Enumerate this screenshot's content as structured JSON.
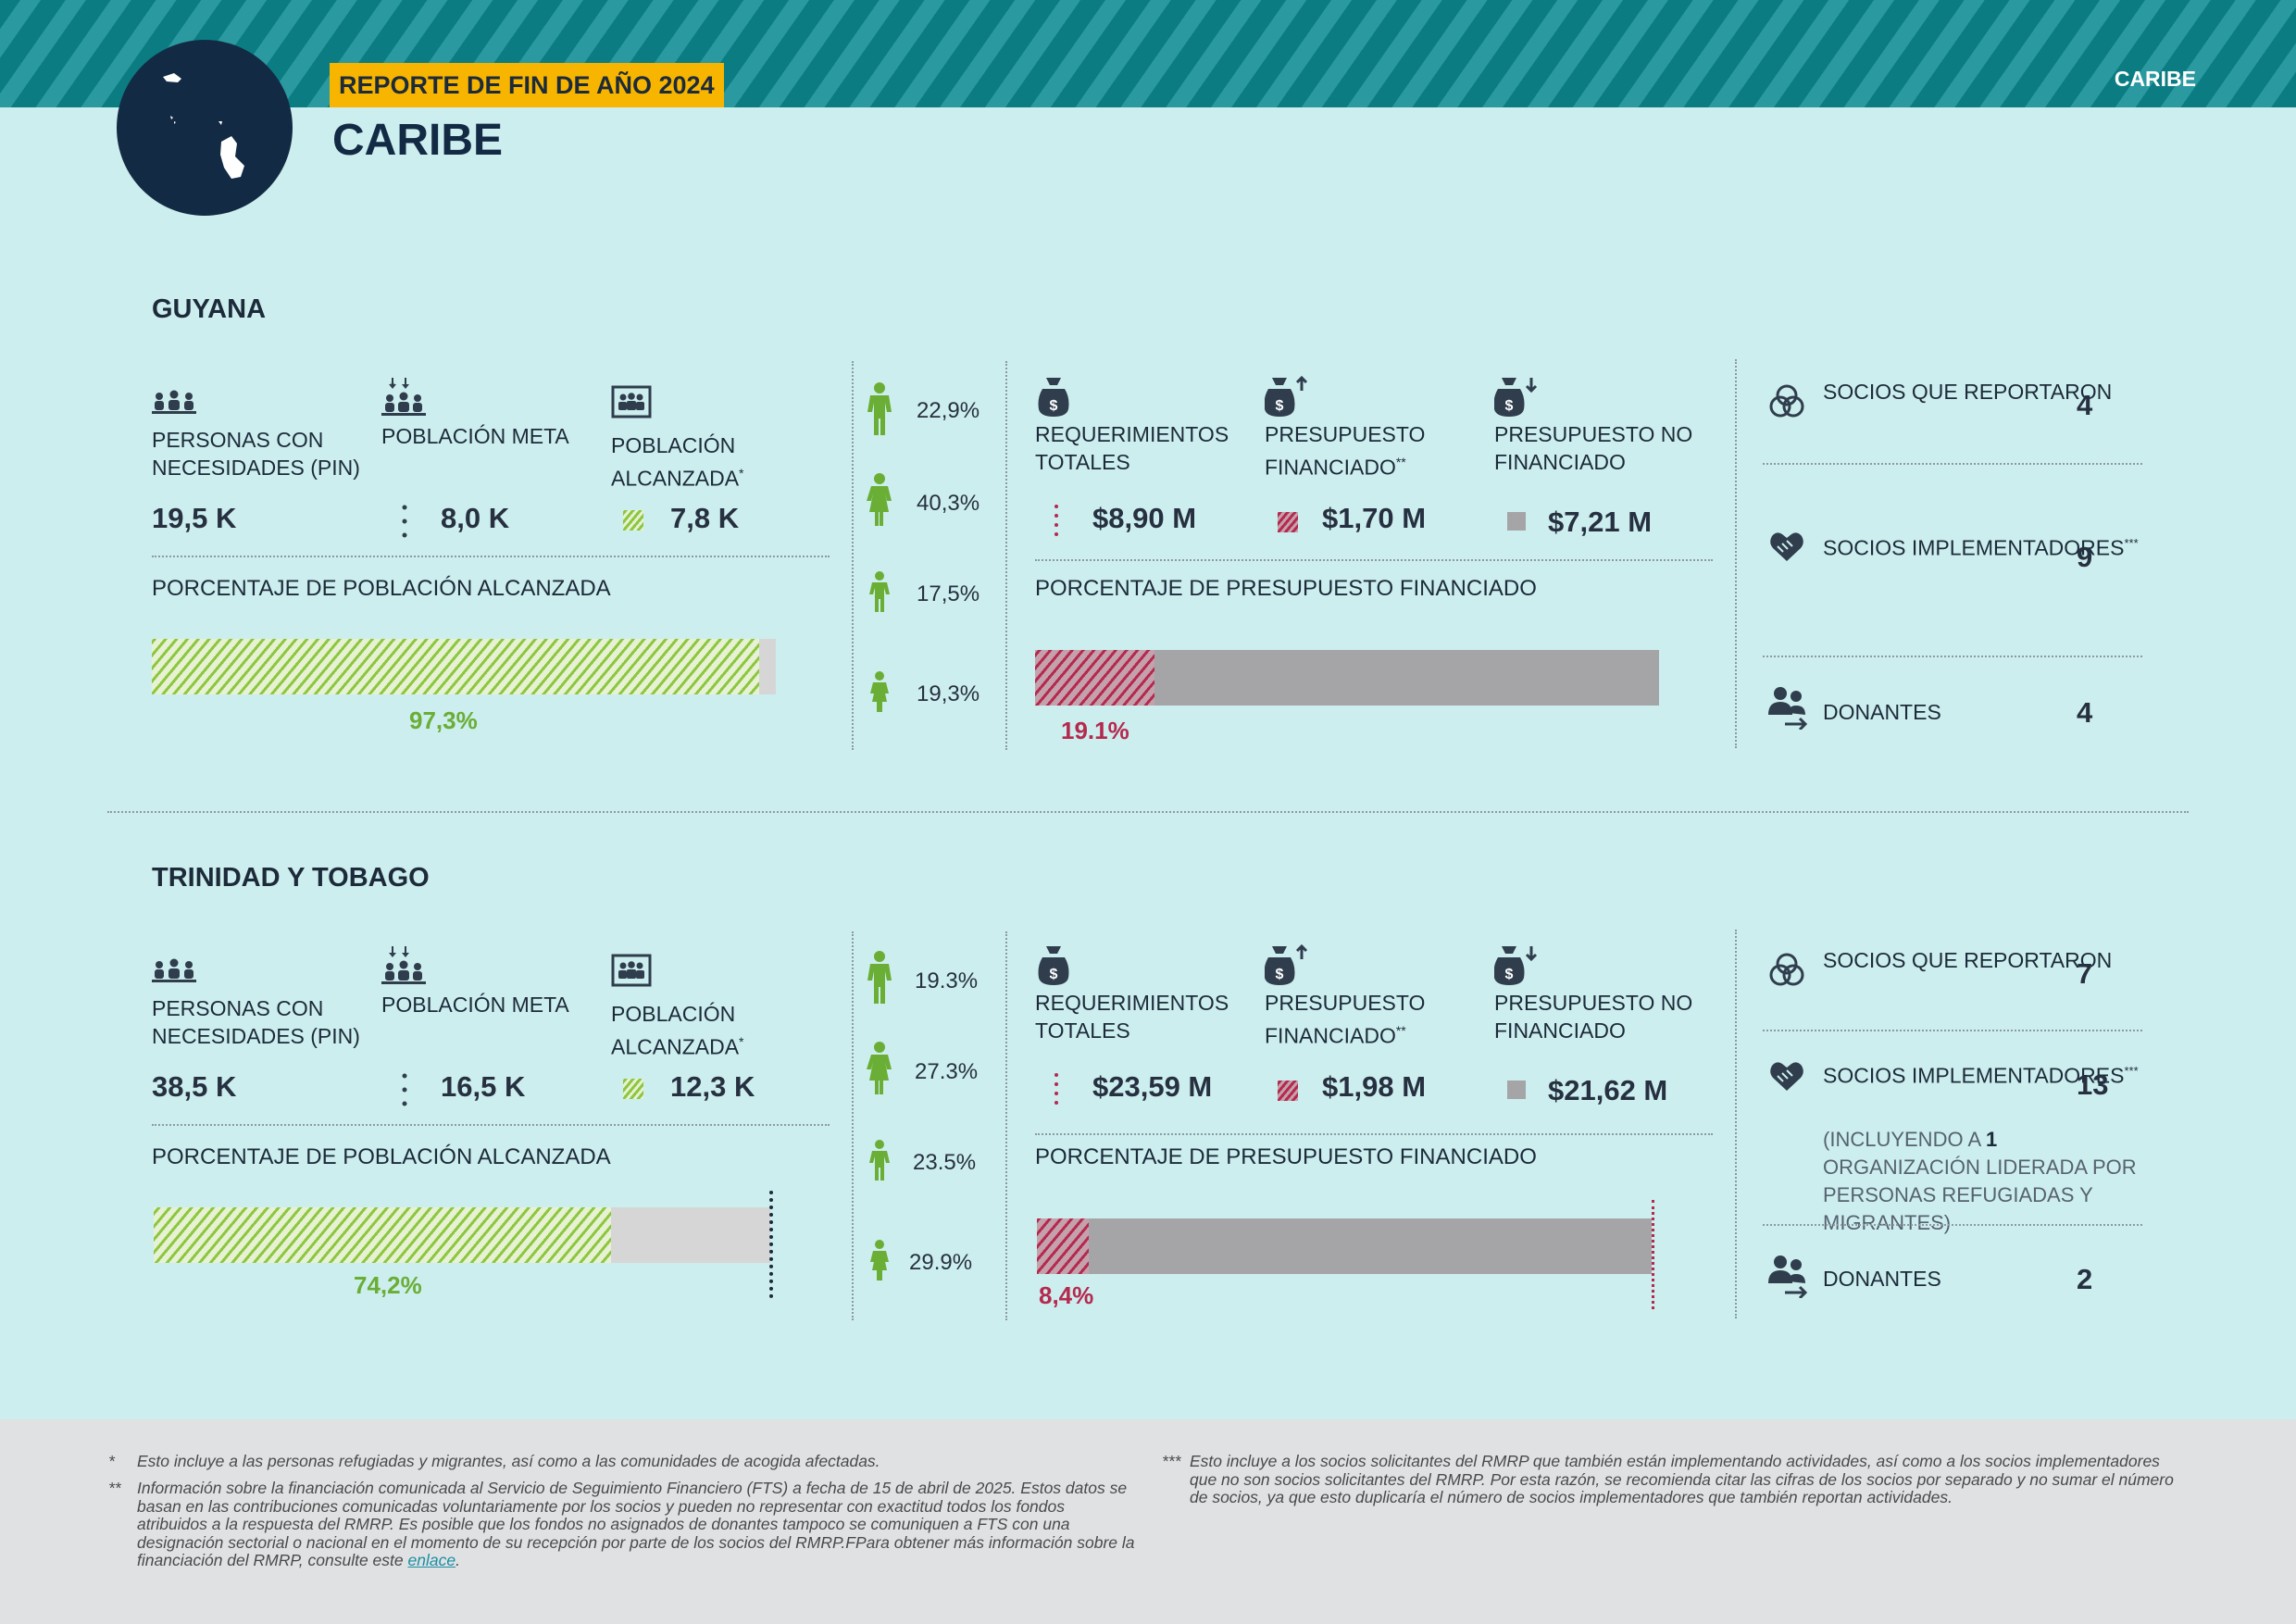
{
  "header": {
    "banner": "REPORTE DE FIN DE AÑO 2024",
    "title": "CARIBE",
    "region_tag": "CARIBE"
  },
  "colors": {
    "teal": "#0b7d82",
    "navy": "#132a44",
    "banner": "#f7b500",
    "green": "#8dc63f",
    "crimson": "#b5294e",
    "gray_bar": "#a5a5a8"
  },
  "labels": {
    "pin": "PERSONAS CON NECESIDADES (PIN)",
    "meta": "POBLACIÓN META",
    "alcanzada": "POBLACIÓN ALCANZADA",
    "alcanzada_mark": "*",
    "pct_poblacion": "PORCENTAJE DE POBLACIÓN ALCANZADA",
    "req": "REQUERIMIENTOS TOTALES",
    "fin": "PRESUPUESTO FINANCIADO",
    "fin_mark": "**",
    "nofin": "PRESUPUESTO NO FINANCIADO",
    "pct_presupuesto": "PORCENTAJE DE PRESUPUESTO FINANCIADO",
    "socios_rep": "SOCIOS QUE REPORTARON",
    "socios_impl": "SOCIOS IMPLEMENTADORES",
    "socios_impl_mark": "***",
    "donantes": "DONANTES"
  },
  "countries": [
    {
      "name": "GUYANA",
      "pin": "19,5 K",
      "meta": "8,0 K",
      "alcanzada": "7,8 K",
      "pct_reached": "97,3%",
      "pct_reached_value": 97.3,
      "demographics": [
        "22,9%",
        "40,3%",
        "17,5%",
        "19,3%"
      ],
      "requerimientos": "$8,90 M",
      "financiado": "$1,70 M",
      "no_financiado": "$7,21 M",
      "pct_funded": "19.1%",
      "pct_funded_value": 19.1,
      "socios_reportaron": "4",
      "socios_implementadores": "9",
      "donantes": "4"
    },
    {
      "name": "TRINIDAD Y TOBAGO",
      "pin": "38,5 K",
      "meta": "16,5 K",
      "alcanzada": "12,3 K",
      "pct_reached": "74,2%",
      "pct_reached_value": 74.2,
      "demographics": [
        "19.3%",
        "27.3%",
        "23.5%",
        "29.9%"
      ],
      "requerimientos": "$23,59 M",
      "financiado": "$1,98 M",
      "no_financiado": "$21,62 M",
      "pct_funded": "8,4%",
      "pct_funded_value": 8.4,
      "socios_reportaron": "7",
      "socios_implementadores": "13",
      "socios_note_pre": "(INCLUYENDO A ",
      "socios_note_num": "1",
      "socios_note_post": " ORGANIZACIÓN LIDERADA POR PERSONAS REFUGIADAS Y MIGRANTES)",
      "donantes": "2"
    }
  ],
  "footnotes": {
    "f1_mark": "*",
    "f1": "Esto incluye a las personas refugiadas y migrantes, así como a las comunidades de acogida afectadas.",
    "f2_mark": "**",
    "f2": "Información sobre la financiación comunicada al Servicio de Seguimiento Financiero (FTS) a fecha de 15 de abril de 2025. Estos datos se basan en las contribuciones comunicadas voluntariamente por los socios y pueden no representar con exactitud todos los fondos atribuidos a la respuesta del RMRP. Es posible que los fondos no asignados de donantes tampoco se comuniquen a FTS con una designación sectorial o nacional en el momento de su recepción por parte de los socios del RMRP.FPara obtener más información sobre la financiación del RMRP, consulte este ",
    "f2_link": "enlace",
    "f2_end": ".",
    "f3_mark": "***",
    "f3": "Esto incluye a los socios solicitantes del RMRP que también están implementando actividades, así como a los socios implementadores que no son socios solicitantes del RMRP. Por esta razón, se recomienda citar las cifras de los socios por separado y no sumar el número de socios, ya que esto duplicaría el número de socios implementadores que también reportan actividades."
  }
}
